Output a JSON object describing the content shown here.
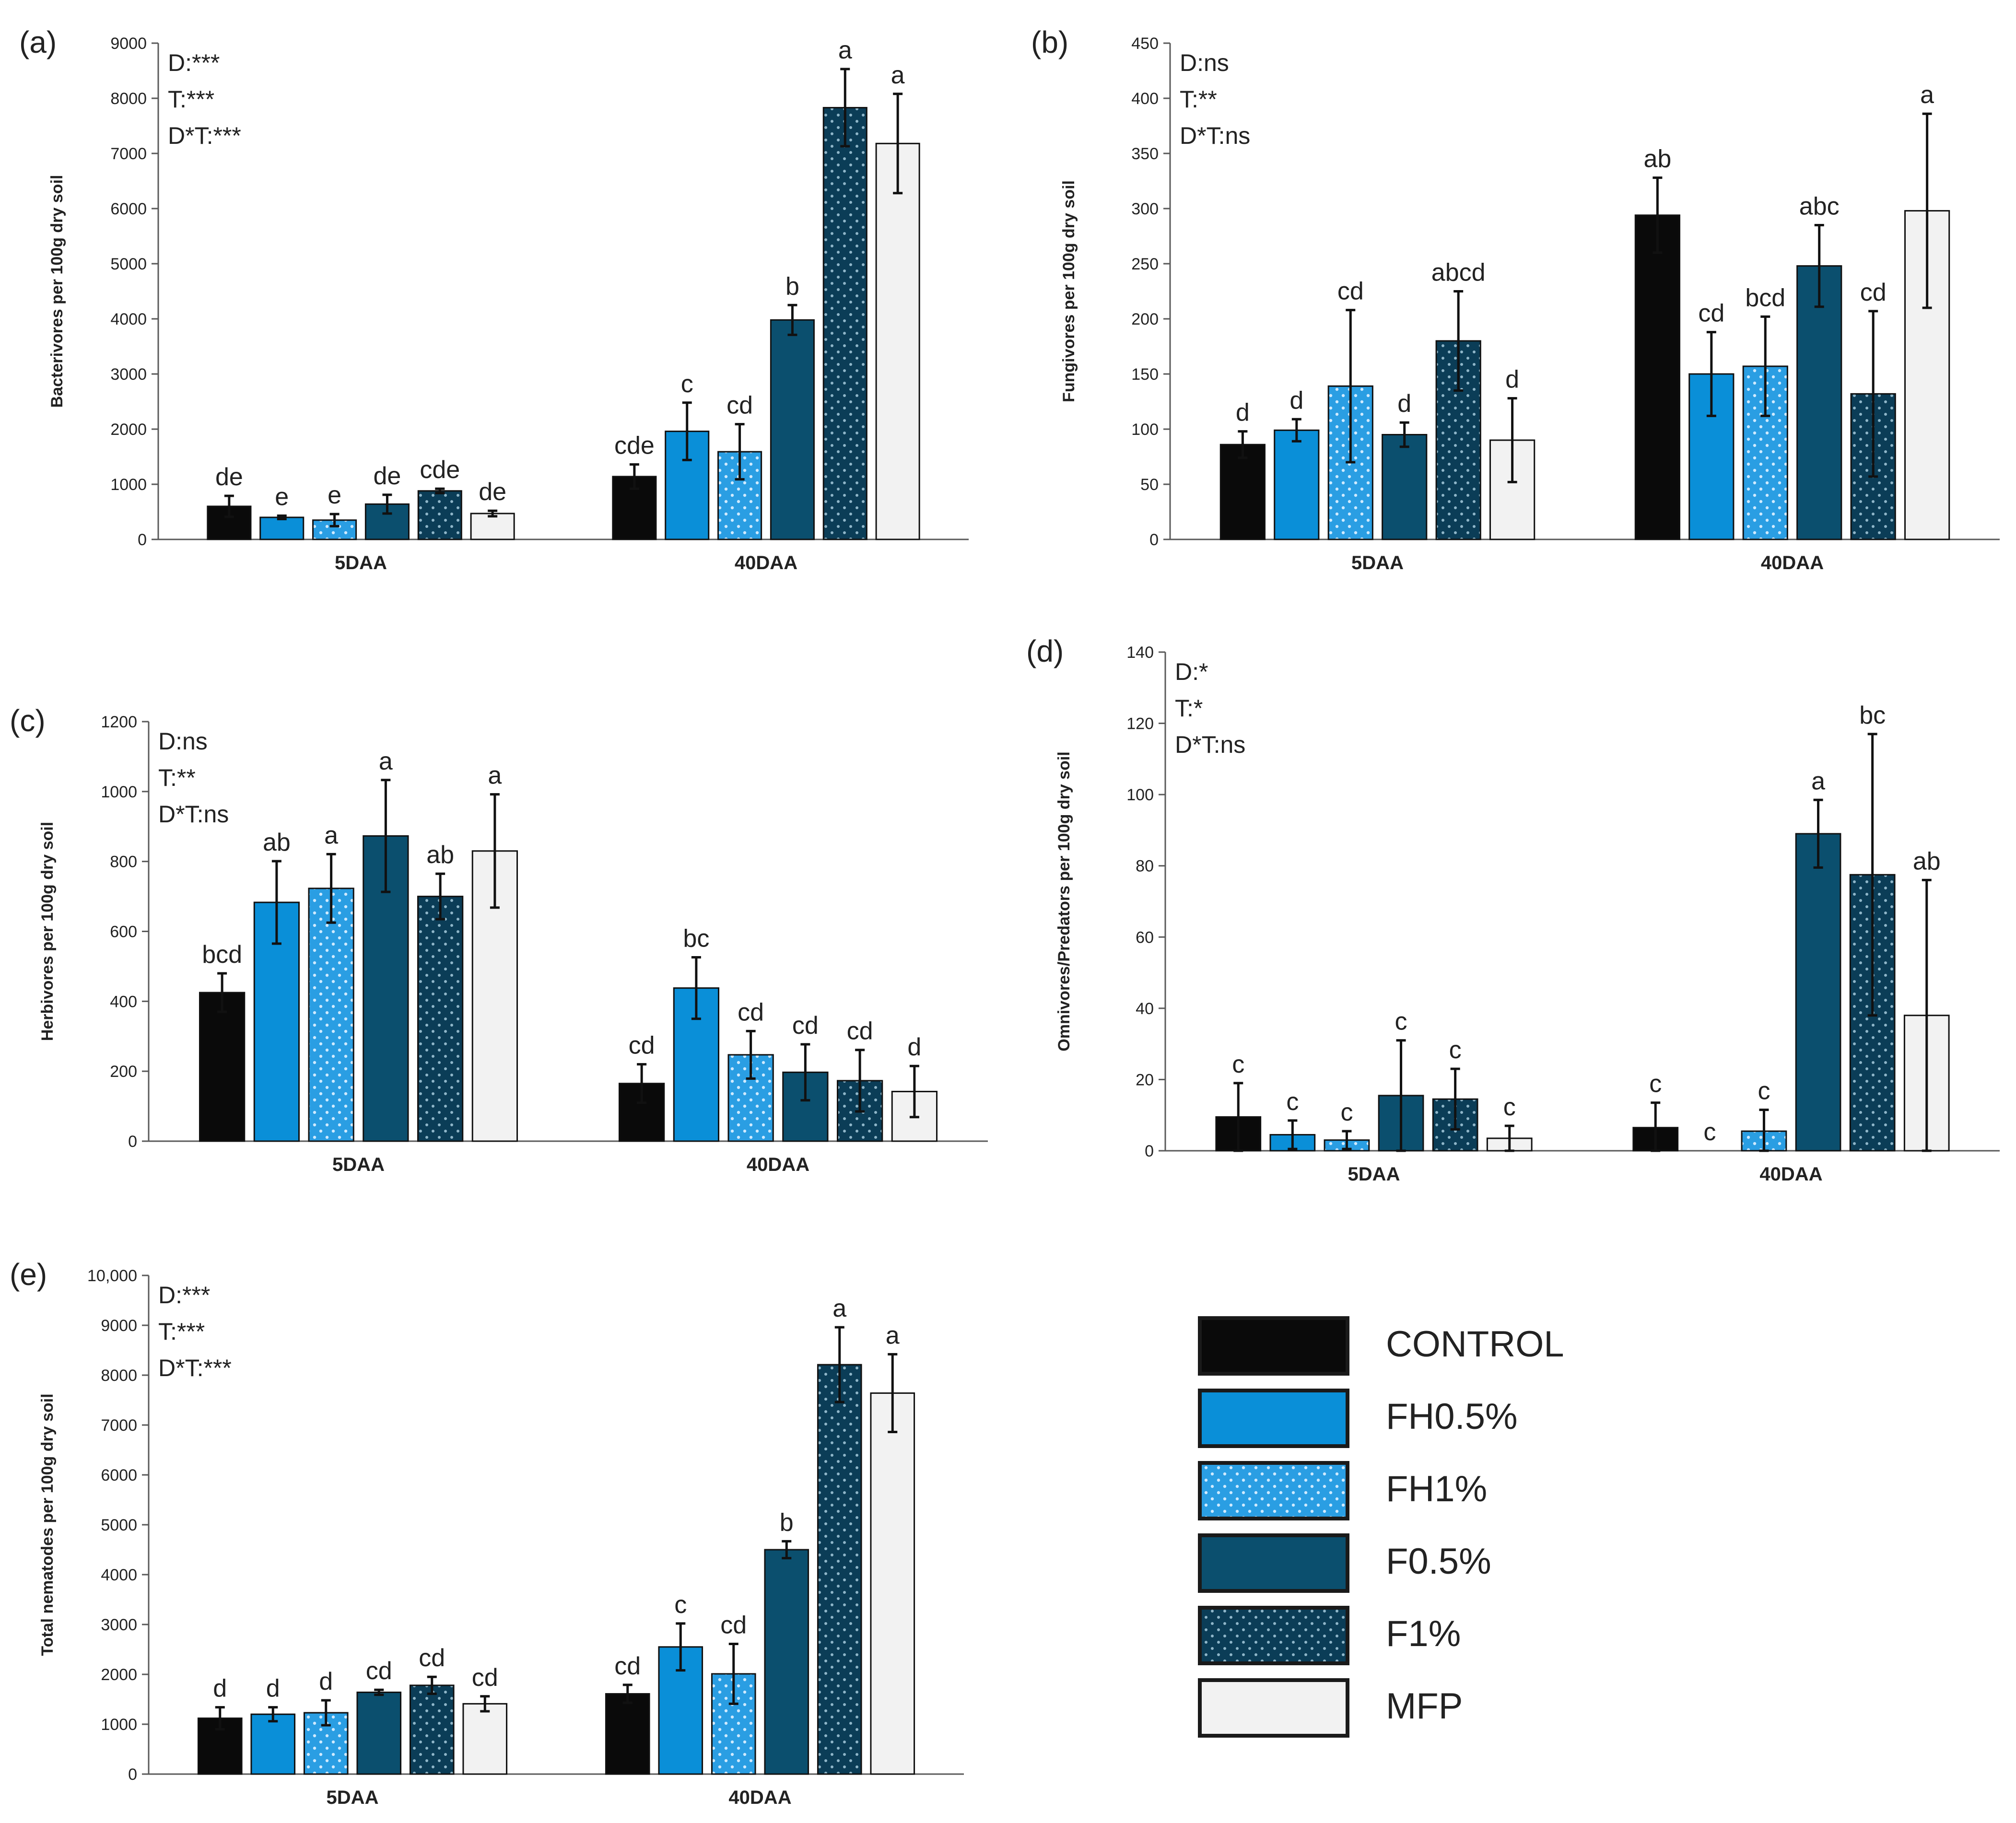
{
  "colors": {
    "CONTROL": "#0a0a0a",
    "FH0.5%": "#0a8fd8",
    "FH1%": "#2a9ee3",
    "F0.5%": "#0b4f6e",
    "F1%": "#0b3d57",
    "MFP": "#f2f2f2",
    "axis": "#595959",
    "text": "#222222"
  },
  "legend": {
    "items": [
      {
        "key": "CONTROL",
        "label": "CONTROL",
        "pattern": "none"
      },
      {
        "key": "FH0.5%",
        "label": "FH0.5%",
        "pattern": "none"
      },
      {
        "key": "FH1%",
        "label": "FH1%",
        "pattern": "dots-light"
      },
      {
        "key": "F0.5%",
        "label": "F0.5%",
        "pattern": "none"
      },
      {
        "key": "F1%",
        "label": "F1%",
        "pattern": "dots-dark"
      },
      {
        "key": "MFP",
        "label": "MFP",
        "pattern": "none"
      }
    ]
  },
  "chart_data": [
    {
      "panel": "(a)",
      "type": "bar",
      "ylabel": "Bacterivores per 100g dry soil",
      "ylim": [
        0,
        9000
      ],
      "yticks": [
        "0",
        "1000",
        "2000",
        "3000",
        "4000",
        "5000",
        "6000",
        "7000",
        "8000",
        "9000"
      ],
      "categories": [
        "5DAA",
        "40DAA"
      ],
      "stats": [
        "D:***",
        "T:***",
        "D*T:***"
      ],
      "series": [
        {
          "name": "CONTROL",
          "values": [
            600,
            1140
          ],
          "errors": [
            190,
            220
          ],
          "letters": [
            "de",
            "cde"
          ]
        },
        {
          "name": "FH0.5%",
          "values": [
            400,
            1960
          ],
          "errors": [
            30,
            520
          ],
          "letters": [
            "e",
            "c"
          ]
        },
        {
          "name": "FH1%",
          "values": [
            350,
            1590
          ],
          "errors": [
            110,
            500
          ],
          "letters": [
            "e",
            "cd"
          ]
        },
        {
          "name": "F0.5%",
          "values": [
            640,
            3980
          ],
          "errors": [
            170,
            270
          ],
          "letters": [
            "de",
            "b"
          ]
        },
        {
          "name": "F1%",
          "values": [
            880,
            7830
          ],
          "errors": [
            40,
            700
          ],
          "letters": [
            "cde",
            "a"
          ]
        },
        {
          "name": "MFP",
          "values": [
            470,
            7180
          ],
          "errors": [
            50,
            900
          ],
          "letters": [
            "de",
            "a"
          ]
        }
      ]
    },
    {
      "panel": "(b)",
      "type": "bar",
      "ylabel": "Fungivores per 100g dry soil",
      "ylim": [
        0,
        450
      ],
      "yticks": [
        "0",
        "50",
        "100",
        "150",
        "200",
        "250",
        "300",
        "350",
        "400",
        "450"
      ],
      "categories": [
        "5DAA",
        "40DAA"
      ],
      "stats": [
        "D:ns",
        "T:**",
        "D*T:ns"
      ],
      "series": [
        {
          "name": "CONTROL",
          "values": [
            86,
            294
          ],
          "errors": [
            12,
            34
          ],
          "letters": [
            "d",
            "ab"
          ]
        },
        {
          "name": "FH0.5%",
          "values": [
            99,
            150
          ],
          "errors": [
            10,
            38
          ],
          "letters": [
            "d",
            "cd"
          ]
        },
        {
          "name": "FH1%",
          "values": [
            139,
            157
          ],
          "errors": [
            69,
            45
          ],
          "letters": [
            "cd",
            "bcd"
          ]
        },
        {
          "name": "F0.5%",
          "values": [
            95,
            248
          ],
          "errors": [
            11,
            37
          ],
          "letters": [
            "d",
            "abc"
          ]
        },
        {
          "name": "F1%",
          "values": [
            180,
            132
          ],
          "errors": [
            45,
            75
          ],
          "letters": [
            "abcd",
            "cd"
          ]
        },
        {
          "name": "MFP",
          "values": [
            90,
            298
          ],
          "errors": [
            38,
            88
          ],
          "letters": [
            "d",
            "a"
          ]
        }
      ]
    },
    {
      "panel": "(c)",
      "type": "bar",
      "ylabel": "Herbivores per 100g dry soil",
      "ylim": [
        0,
        1200
      ],
      "yticks": [
        "0",
        "200",
        "400",
        "600",
        "800",
        "1000",
        "1200"
      ],
      "categories": [
        "5DAA",
        "40DAA"
      ],
      "stats": [
        "D:ns",
        "T:**",
        "D*T:ns"
      ],
      "series": [
        {
          "name": "CONTROL",
          "values": [
            425,
            165
          ],
          "errors": [
            55,
            55
          ],
          "letters": [
            "bcd",
            "cd"
          ]
        },
        {
          "name": "FH0.5%",
          "values": [
            683,
            438
          ],
          "errors": [
            118,
            88
          ],
          "letters": [
            "ab",
            "bc"
          ]
        },
        {
          "name": "FH1%",
          "values": [
            723,
            247
          ],
          "errors": [
            98,
            68
          ],
          "letters": [
            "a",
            "cd"
          ]
        },
        {
          "name": "F0.5%",
          "values": [
            873,
            197
          ],
          "errors": [
            160,
            80
          ],
          "letters": [
            "a",
            "cd"
          ]
        },
        {
          "name": "F1%",
          "values": [
            700,
            173
          ],
          "errors": [
            65,
            88
          ],
          "letters": [
            "ab",
            "cd"
          ]
        },
        {
          "name": "MFP",
          "values": [
            830,
            142
          ],
          "errors": [
            162,
            73
          ],
          "letters": [
            "a",
            "d"
          ]
        }
      ]
    },
    {
      "panel": "(d)",
      "type": "bar",
      "ylabel": "Omnivores/Predators per 100g dry soil",
      "ylim": [
        0,
        140
      ],
      "yticks": [
        "0",
        "20",
        "40",
        "60",
        "80",
        "100",
        "120",
        "140"
      ],
      "categories": [
        "5DAA",
        "40DAA"
      ],
      "stats": [
        "D:*",
        "T:*",
        "D*T:ns"
      ],
      "series": [
        {
          "name": "CONTROL",
          "values": [
            9.5,
            6.5
          ],
          "errors": [
            9.5,
            7
          ],
          "letters": [
            "c",
            "c"
          ]
        },
        {
          "name": "FH0.5%",
          "values": [
            4.5,
            0
          ],
          "errors": [
            4,
            0
          ],
          "letters": [
            "c",
            "c"
          ]
        },
        {
          "name": "FH1%",
          "values": [
            3,
            5.5
          ],
          "errors": [
            2.5,
            6
          ],
          "letters": [
            "c",
            "c"
          ]
        },
        {
          "name": "F0.5%",
          "values": [
            15.5,
            89
          ],
          "errors": [
            15.5,
            9.5
          ],
          "letters": [
            "c",
            "a"
          ]
        },
        {
          "name": "F1%",
          "values": [
            14.5,
            77.5
          ],
          "errors": [
            8.5,
            39.5
          ],
          "letters": [
            "c",
            "bc"
          ]
        },
        {
          "name": "MFP",
          "values": [
            3.5,
            38
          ],
          "errors": [
            3.5,
            38
          ],
          "letters": [
            "c",
            "ab"
          ]
        }
      ]
    },
    {
      "panel": "(e)",
      "type": "bar",
      "ylabel": "Total nematodes per 100g dry soil",
      "ylim": [
        0,
        10000
      ],
      "yticks": [
        "0",
        "1000",
        "2000",
        "3000",
        "4000",
        "5000",
        "6000",
        "7000",
        "8000",
        "9000",
        "10,000"
      ],
      "categories": [
        "5DAA",
        "40DAA"
      ],
      "stats": [
        "D:***",
        "T:***",
        "D*T:***"
      ],
      "series": [
        {
          "name": "CONTROL",
          "values": [
            1120,
            1610
          ],
          "errors": [
            220,
            180
          ],
          "letters": [
            "d",
            "cd"
          ]
        },
        {
          "name": "FH0.5%",
          "values": [
            1200,
            2550
          ],
          "errors": [
            140,
            470
          ],
          "letters": [
            "d",
            "c"
          ]
        },
        {
          "name": "FH1%",
          "values": [
            1230,
            2010
          ],
          "errors": [
            250,
            600
          ],
          "letters": [
            "d",
            "cd"
          ]
        },
        {
          "name": "F0.5%",
          "values": [
            1640,
            4500
          ],
          "errors": [
            50,
            170
          ],
          "letters": [
            "cd",
            "b"
          ]
        },
        {
          "name": "F1%",
          "values": [
            1780,
            8210
          ],
          "errors": [
            170,
            750
          ],
          "letters": [
            "cd",
            "a"
          ]
        },
        {
          "name": "MFP",
          "values": [
            1410,
            7640
          ],
          "errors": [
            150,
            780
          ],
          "letters": [
            "cd",
            "a"
          ]
        }
      ]
    }
  ]
}
